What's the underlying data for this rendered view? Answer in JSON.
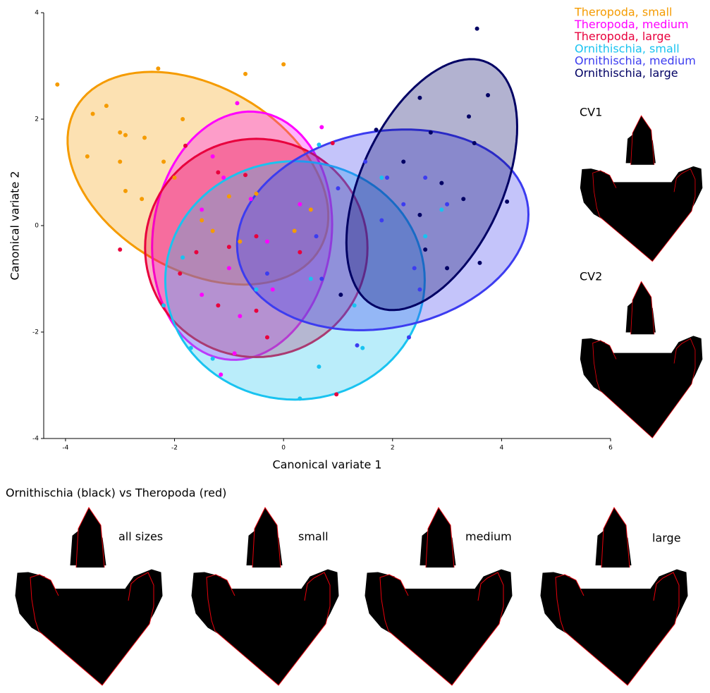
{
  "chart_data": {
    "type": "scatter",
    "xlabel": "Canonical variate 1",
    "ylabel": "Canonical variate 2",
    "xlim": [
      -4.4,
      6
    ],
    "ylim": [
      -4,
      4
    ],
    "xticks": [
      -4,
      -2,
      0,
      2,
      4,
      6
    ],
    "yticks": [
      -4,
      -2,
      0,
      2,
      4
    ],
    "legend": "upper right",
    "series": [
      {
        "name": "Theropoda, small",
        "color": "#f59b00",
        "x": [
          -4.15,
          -3.5,
          -3.25,
          -3.0,
          -2.9,
          -3.6,
          -2.3,
          -0.7,
          0.0,
          -1.85,
          -2.55,
          -3.0,
          -2.2,
          -2.0,
          -2.9,
          -2.6,
          -1.5,
          -1.0,
          -0.5,
          0.2,
          -0.8,
          -1.3,
          0.5
        ],
        "y": [
          2.65,
          2.1,
          2.25,
          1.75,
          1.7,
          1.3,
          2.95,
          2.85,
          3.03,
          2.0,
          1.65,
          1.2,
          1.2,
          0.9,
          0.65,
          0.5,
          0.1,
          0.55,
          0.6,
          -0.1,
          -0.3,
          -0.1,
          0.3
        ],
        "ellipse": {
          "center": [
            -1.57,
            0.89
          ],
          "axis1": [
            2.24,
            -1.32
          ],
          "axis2": [
            -0.84,
            -1.5
          ]
        }
      },
      {
        "name": "Theropoda, medium",
        "color": "#ff00ff",
        "x": [
          -0.85,
          0.7,
          -1.3,
          -1.1,
          -0.6,
          -1.5,
          -0.3,
          -1.0,
          -1.5,
          -0.8,
          -1.15,
          -0.2,
          0.3,
          -0.9
        ],
        "y": [
          2.3,
          1.85,
          1.3,
          0.9,
          0.5,
          0.3,
          -0.3,
          -0.8,
          -1.3,
          -1.7,
          -2.8,
          -1.2,
          0.4,
          -2.4
        ],
        "ellipse": {
          "center": [
            -0.76,
            -0.19
          ],
          "axis1": [
            0.32,
            2.32
          ],
          "axis2": [
            1.62,
            -0.24
          ]
        }
      },
      {
        "name": "Theropoda, large",
        "color": "#e8003d",
        "x": [
          -3.0,
          -1.8,
          -1.2,
          -0.7,
          -0.5,
          -1.0,
          -1.6,
          -1.2,
          -0.5,
          0.9,
          0.3,
          -0.3,
          0.97,
          -1.9
        ],
        "y": [
          -0.45,
          1.5,
          1.0,
          0.95,
          -0.2,
          -0.4,
          -0.5,
          -1.5,
          -1.6,
          1.55,
          -0.5,
          -2.1,
          -3.17,
          -0.9
        ],
        "ellipse": {
          "center": [
            -0.5,
            -0.42
          ],
          "axis1": [
            2.04,
            0
          ],
          "axis2": [
            0,
            -2.05
          ]
        }
      },
      {
        "name": "Ornithischia, small",
        "color": "#19c3f0",
        "x": [
          0.65,
          -1.85,
          -2.2,
          -1.7,
          -1.3,
          0.3,
          0.65,
          1.45,
          1.8,
          2.6,
          1.3,
          -0.5,
          0.5,
          2.9
        ],
        "y": [
          1.52,
          -0.6,
          -1.5,
          -2.3,
          -2.5,
          -3.25,
          -2.65,
          -2.3,
          0.9,
          -0.2,
          -1.5,
          -1.2,
          -1.0,
          0.3
        ],
        "ellipse": {
          "center": [
            0.21,
            -1.03
          ],
          "axis1": [
            2.38,
            0
          ],
          "axis2": [
            0,
            -2.24
          ]
        }
      },
      {
        "name": "Ornithischia, medium",
        "color": "#3c3cf0",
        "x": [
          1.0,
          1.5,
          1.8,
          2.2,
          2.4,
          3.0,
          2.6,
          2.3,
          1.35,
          0.7,
          -0.3,
          2.5,
          1.9,
          0.6
        ],
        "y": [
          0.7,
          1.2,
          0.1,
          0.4,
          -0.8,
          0.4,
          0.9,
          -2.1,
          -2.25,
          -1.0,
          -0.9,
          -1.2,
          0.9,
          -0.2
        ],
        "ellipse": {
          "center": [
            1.82,
            -0.08
          ],
          "axis1": [
            2.65,
            0.53
          ],
          "axis2": [
            0.35,
            -1.81
          ]
        }
      },
      {
        "name": "Ornithischia, large",
        "color": "#000064",
        "x": [
          3.55,
          3.75,
          3.4,
          2.5,
          2.7,
          3.5,
          2.2,
          2.9,
          3.3,
          2.5,
          4.1,
          3.0,
          3.6,
          1.7,
          1.05,
          2.6
        ],
        "y": [
          3.7,
          2.45,
          2.05,
          2.4,
          1.75,
          1.55,
          1.2,
          0.8,
          0.5,
          0.2,
          0.45,
          -0.8,
          -0.7,
          1.8,
          -1.3,
          -0.45
        ],
        "ellipse": {
          "center": [
            2.72,
            0.77
          ],
          "axis1": [
            1.03,
            2.29
          ],
          "axis2": [
            1.18,
            -0.56
          ]
        }
      }
    ],
    "annotations": {
      "cv_labels": [
        "CV1",
        "CV2"
      ],
      "caption": "Ornithischia (black) vs Theropoda (red)",
      "panel_labels": [
        "all sizes",
        "small",
        "medium",
        "large"
      ]
    }
  }
}
